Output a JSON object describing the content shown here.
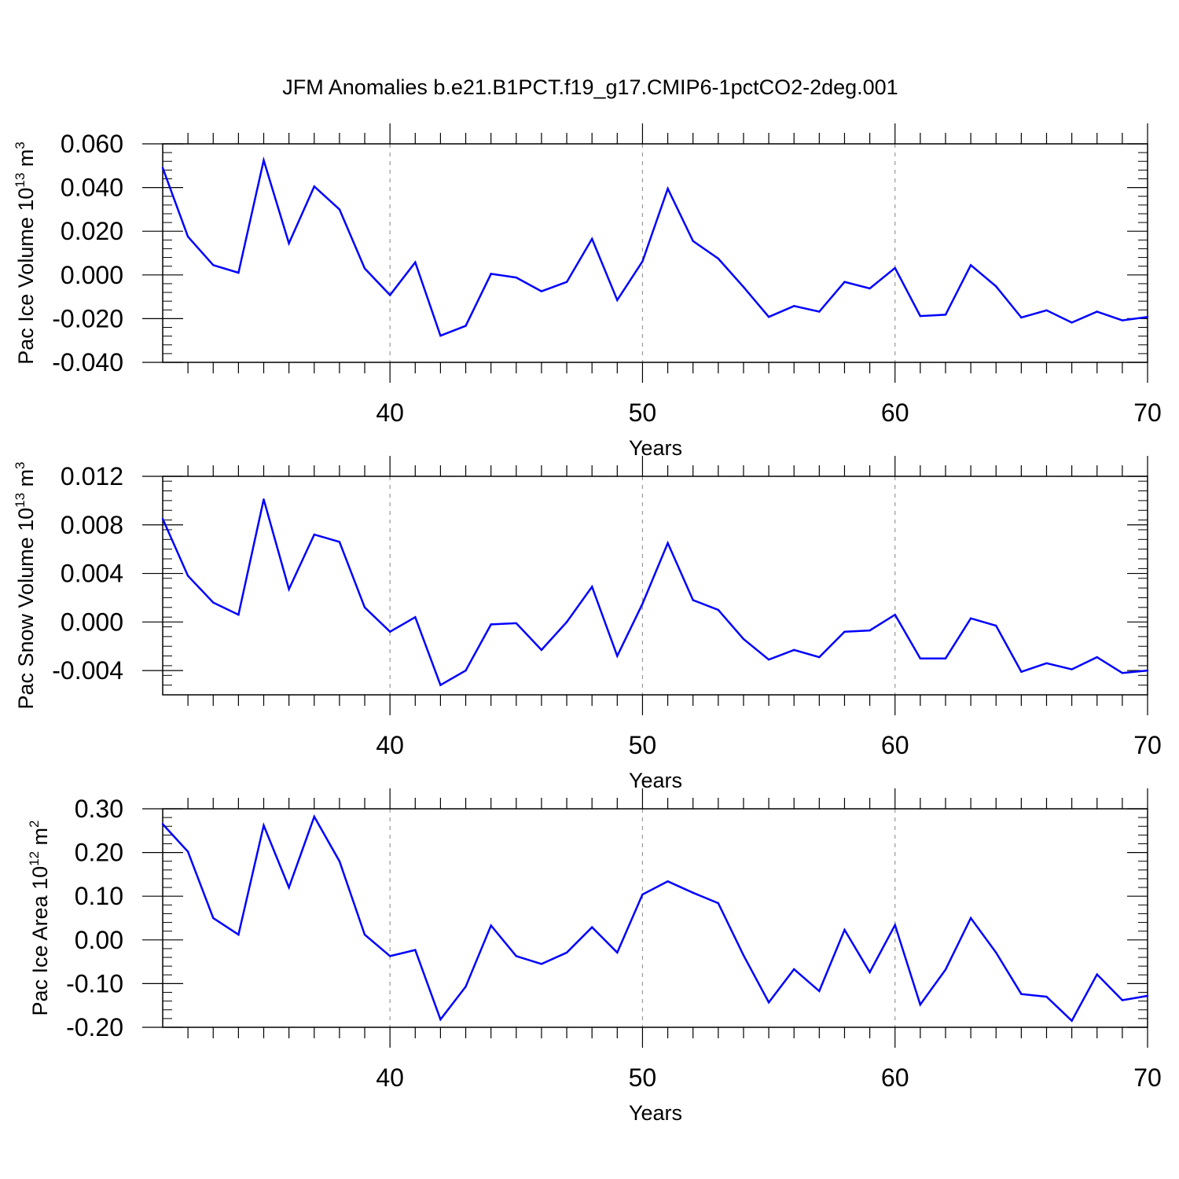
{
  "figure": {
    "title": "JFM Anomalies b.e21.B1PCT.f19_g17.CMIP6-1pctCO2-2deg.001",
    "line_color": "#0000ff",
    "grid_color": "#999999"
  },
  "chart_data": [
    {
      "type": "line",
      "title": "",
      "xlabel": "Years",
      "ylabel": {
        "text": "Pac Ice Volume 10",
        "sup": "13",
        "unit": " m",
        "unit_sup": "3"
      },
      "xlim": [
        31,
        70
      ],
      "ylim": [
        -0.04,
        0.06
      ],
      "xticks": [
        40,
        50,
        60,
        70
      ],
      "yticks": [
        "0.060",
        "0.040",
        "0.020",
        "0.000",
        "-0.020",
        "-0.040"
      ],
      "ytick_values": [
        0.06,
        0.04,
        0.02,
        0.0,
        -0.02,
        -0.04
      ],
      "grid": "vertical dashed at major x ticks",
      "series": [
        {
          "name": "Pac Ice Volume",
          "x": [
            31,
            32,
            33,
            34,
            35,
            36,
            37,
            38,
            39,
            40,
            41,
            42,
            43,
            44,
            45,
            46,
            47,
            48,
            49,
            50,
            51,
            52,
            53,
            54,
            55,
            56,
            57,
            58,
            59,
            60,
            61,
            62,
            63,
            64,
            65,
            66,
            67,
            68,
            69,
            70
          ],
          "values": [
            0.049,
            0.0175,
            0.0045,
            0.001,
            0.0525,
            0.0145,
            0.0405,
            0.03,
            0.003,
            -0.0092,
            0.0058,
            -0.0278,
            -0.0233,
            0.0005,
            -0.0012,
            -0.0075,
            -0.0032,
            0.0165,
            -0.0115,
            0.0062,
            0.0395,
            0.0155,
            0.0075,
            -0.0055,
            -0.0192,
            -0.0142,
            -0.0168,
            -0.0032,
            -0.0062,
            0.0032,
            -0.0188,
            -0.0182,
            0.0045,
            -0.0052,
            -0.0195,
            -0.0162,
            -0.0218,
            -0.0168,
            -0.0208,
            -0.0192
          ]
        }
      ]
    },
    {
      "type": "line",
      "title": "",
      "xlabel": "Years",
      "ylabel": {
        "text": "Pac Snow Volume 10",
        "sup": "13",
        "unit": " m",
        "unit_sup": "3"
      },
      "xlim": [
        31,
        70
      ],
      "ylim": [
        -0.006,
        0.012
      ],
      "xticks": [
        40,
        50,
        60,
        70
      ],
      "yticks": [
        "0.012",
        "0.008",
        "0.004",
        "0.000",
        "-0.004"
      ],
      "ytick_values": [
        0.012,
        0.008,
        0.004,
        0.0,
        -0.004
      ],
      "grid": "vertical dashed at major x ticks",
      "series": [
        {
          "name": "Pac Snow Volume",
          "x": [
            31,
            32,
            33,
            34,
            35,
            36,
            37,
            38,
            39,
            40,
            41,
            42,
            43,
            44,
            45,
            46,
            47,
            48,
            49,
            50,
            51,
            52,
            53,
            54,
            55,
            56,
            57,
            58,
            59,
            60,
            61,
            62,
            63,
            64,
            65,
            66,
            67,
            68,
            69,
            70
          ],
          "values": [
            0.0085,
            0.0038,
            0.0016,
            0.0006,
            0.0101,
            0.0027,
            0.0072,
            0.0066,
            0.0012,
            -0.0008,
            0.0004,
            -0.0052,
            -0.004,
            -0.0002,
            -0.0001,
            -0.0023,
            0.0,
            0.0029,
            -0.0028,
            0.0015,
            0.0065,
            0.0018,
            0.001,
            -0.0014,
            -0.0031,
            -0.0023,
            -0.0029,
            -0.0008,
            -0.0007,
            0.0006,
            -0.003,
            -0.003,
            0.0003,
            -0.0003,
            -0.0041,
            -0.0034,
            -0.0039,
            -0.0029,
            -0.0042,
            -0.004
          ]
        }
      ]
    },
    {
      "type": "line",
      "title": "",
      "xlabel": "Years",
      "ylabel": {
        "text": "Pac Ice Area 10",
        "sup": "12",
        "unit": " m",
        "unit_sup": "2"
      },
      "xlim": [
        31,
        70
      ],
      "ylim": [
        -0.2,
        0.3
      ],
      "xticks": [
        40,
        50,
        60,
        70
      ],
      "yticks": [
        "0.30",
        "0.20",
        "0.10",
        "0.00",
        "-0.10",
        "-0.20"
      ],
      "ytick_values": [
        0.3,
        0.2,
        0.1,
        0.0,
        -0.1,
        -0.2
      ],
      "grid": "vertical dashed at major x ticks",
      "series": [
        {
          "name": "Pac Ice Area",
          "x": [
            31,
            32,
            33,
            34,
            35,
            36,
            37,
            38,
            39,
            40,
            41,
            42,
            43,
            44,
            45,
            46,
            47,
            48,
            49,
            50,
            51,
            52,
            53,
            54,
            55,
            56,
            57,
            58,
            59,
            60,
            61,
            62,
            63,
            64,
            65,
            66,
            67,
            68,
            69,
            70
          ],
          "values": [
            0.265,
            0.202,
            0.05,
            0.012,
            0.262,
            0.12,
            0.282,
            0.18,
            0.012,
            -0.037,
            -0.023,
            -0.182,
            -0.107,
            0.033,
            -0.037,
            -0.055,
            -0.029,
            0.029,
            -0.029,
            0.104,
            0.134,
            0.108,
            0.084,
            -0.035,
            -0.143,
            -0.067,
            -0.117,
            0.023,
            -0.074,
            0.034,
            -0.148,
            -0.068,
            0.05,
            -0.029,
            -0.124,
            -0.13,
            -0.185,
            -0.079,
            -0.138,
            -0.128
          ]
        }
      ]
    }
  ]
}
